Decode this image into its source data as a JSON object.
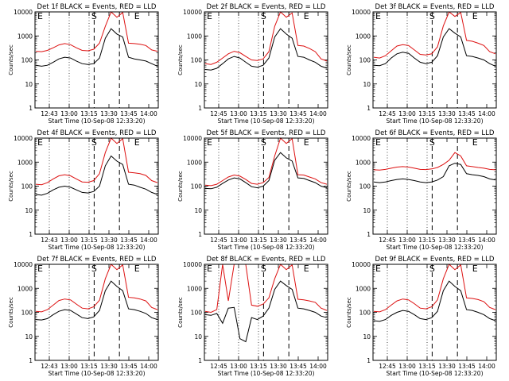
{
  "ylabel": "Counts/sec",
  "xlabel": "Start Time (10-Sep-08 12:33:20)",
  "y_ticks": [
    "1",
    "10",
    "100",
    "1000",
    "10000"
  ],
  "y_scale": "log",
  "ylim": [
    1,
    10000
  ],
  "flare_marks": [
    "S",
    "E"
  ],
  "series_colors": {
    "events": "#000000",
    "lld": "#dd1111"
  },
  "chart_data": [
    {
      "type": "line",
      "title": "Det 1f BLACK = Events, RED = LLD",
      "xticks": [
        "12:43",
        "13:00",
        "13:15",
        "13:30",
        "13:45",
        "14:00"
      ],
      "series": [
        {
          "name": "Events",
          "values": [
            60,
            55,
            60,
            80,
            110,
            130,
            120,
            90,
            70,
            65,
            70,
            120,
            800,
            2000,
            1200,
            900,
            130,
            110,
            100,
            90,
            70,
            55
          ]
        },
        {
          "name": "LLD",
          "values": [
            230,
            220,
            250,
            320,
            420,
            480,
            430,
            320,
            250,
            240,
            280,
            500,
            2500,
            10000,
            6000,
            9500,
            500,
            480,
            450,
            400,
            260,
            230
          ]
        }
      ]
    },
    {
      "type": "line",
      "title": "Det 2f BLACK = Events, RED = LLD",
      "xticks": [
        "12:45",
        "13:00",
        "13:15",
        "13:30",
        "13:45",
        "14:00"
      ],
      "series": [
        {
          "name": "Events",
          "values": [
            40,
            38,
            45,
            70,
            110,
            140,
            120,
            80,
            55,
            50,
            60,
            120,
            900,
            2000,
            1200,
            800,
            140,
            130,
            100,
            80,
            55,
            45
          ]
        },
        {
          "name": "LLD",
          "values": [
            70,
            65,
            80,
            120,
            180,
            230,
            200,
            140,
            100,
            95,
            110,
            220,
            2500,
            10000,
            6000,
            9000,
            400,
            380,
            300,
            220,
            110,
            90
          ]
        }
      ]
    },
    {
      "type": "line",
      "title": "Det 3f BLACK = Events, RED = LLD",
      "xticks": [
        "12:45",
        "13:00",
        "13:15",
        "13:30",
        "13:45",
        "14:00"
      ],
      "series": [
        {
          "name": "Events",
          "values": [
            60,
            58,
            70,
            120,
            180,
            210,
            190,
            120,
            80,
            70,
            80,
            150,
            900,
            2000,
            1300,
            900,
            150,
            140,
            120,
            100,
            70,
            55
          ]
        },
        {
          "name": "LLD",
          "values": [
            130,
            120,
            150,
            240,
            380,
            430,
            400,
            260,
            170,
            160,
            180,
            350,
            2600,
            10000,
            6500,
            9500,
            650,
            600,
            500,
            400,
            220,
            180
          ]
        }
      ]
    },
    {
      "type": "line",
      "title": "Det 4f BLACK = Events, RED = LLD",
      "xticks": [
        "12:43",
        "13:00",
        "13:15",
        "13:30",
        "13:45",
        "14:00"
      ],
      "series": [
        {
          "name": "Events",
          "values": [
            45,
            42,
            50,
            70,
            90,
            100,
            90,
            70,
            55,
            52,
            60,
            100,
            700,
            1800,
            1100,
            800,
            120,
            110,
            90,
            75,
            55,
            45
          ]
        },
        {
          "name": "LLD",
          "values": [
            120,
            115,
            140,
            200,
            270,
            300,
            270,
            200,
            150,
            145,
            170,
            330,
            2500,
            10000,
            6000,
            9500,
            380,
            360,
            330,
            280,
            170,
            140
          ]
        }
      ]
    },
    {
      "type": "line",
      "title": "Det 5f BLACK = Events, RED = LLD",
      "xticks": [
        "12:45",
        "13:00",
        "13:15",
        "13:30",
        "13:45",
        "14:00"
      ],
      "series": [
        {
          "name": "Events",
          "values": [
            80,
            78,
            90,
            130,
            180,
            220,
            200,
            140,
            95,
            85,
            100,
            170,
            1200,
            2500,
            1500,
            1100,
            220,
            210,
            170,
            140,
            100,
            85
          ]
        },
        {
          "name": "LLD",
          "values": [
            110,
            105,
            120,
            170,
            240,
            290,
            260,
            190,
            130,
            120,
            140,
            230,
            1800,
            10000,
            6000,
            9500,
            300,
            290,
            240,
            200,
            140,
            120
          ]
        }
      ]
    },
    {
      "type": "line",
      "title": "Det 6f BLACK = Events, RED = LLD",
      "xticks": [
        "12:45",
        "13:00",
        "13:15",
        "13:30",
        "13:45",
        "14:00"
      ],
      "series": [
        {
          "name": "Events",
          "values": [
            150,
            140,
            150,
            170,
            190,
            200,
            190,
            170,
            150,
            140,
            150,
            180,
            250,
            700,
            900,
            800,
            330,
            300,
            280,
            250,
            200,
            180
          ]
        },
        {
          "name": "LLD",
          "values": [
            480,
            470,
            500,
            560,
            620,
            650,
            620,
            560,
            500,
            490,
            520,
            600,
            800,
            1200,
            2500,
            1800,
            700,
            650,
            600,
            560,
            500,
            480
          ]
        }
      ]
    },
    {
      "type": "line",
      "title": "Det 7f BLACK = Events, RED = LLD",
      "xticks": [
        "12:43",
        "13:00",
        "13:15",
        "13:30",
        "13:45",
        "14:00"
      ],
      "series": [
        {
          "name": "Events",
          "values": [
            50,
            48,
            55,
            80,
            110,
            130,
            120,
            85,
            60,
            55,
            65,
            120,
            800,
            2000,
            1200,
            800,
            140,
            130,
            110,
            90,
            60,
            50
          ]
        },
        {
          "name": "LLD",
          "values": [
            110,
            105,
            130,
            200,
            310,
            360,
            330,
            220,
            150,
            140,
            170,
            320,
            2500,
            10000,
            6000,
            9500,
            420,
            400,
            360,
            300,
            160,
            130
          ]
        }
      ]
    },
    {
      "type": "line",
      "title": "Det 8f BLACK = Events, RED = LLD",
      "xticks": [
        "12:45",
        "13:00",
        "13:15",
        "13:30",
        "13:45",
        "14:00"
      ],
      "series": [
        {
          "name": "Events",
          "values": [
            80,
            75,
            90,
            35,
            150,
            160,
            8,
            6,
            60,
            50,
            70,
            150,
            900,
            2000,
            1300,
            900,
            150,
            140,
            120,
            100,
            70,
            60
          ]
        },
        {
          "name": "LLD",
          "values": [
            110,
            100,
            130,
            10000,
            300,
            10000,
            10000,
            10000,
            200,
            180,
            220,
            400,
            2500,
            10000,
            6000,
            9500,
            350,
            330,
            300,
            260,
            150,
            120
          ]
        }
      ]
    },
    {
      "type": "line",
      "title": "Det 9f BLACK = Events, RED = LLD",
      "xticks": [
        "12:45",
        "13:00",
        "13:15",
        "13:30",
        "13:45",
        "14:00"
      ],
      "series": [
        {
          "name": "Events",
          "values": [
            45,
            42,
            50,
            75,
            100,
            120,
            110,
            80,
            55,
            50,
            60,
            110,
            800,
            2000,
            1200,
            800,
            130,
            120,
            100,
            80,
            55,
            45
          ]
        },
        {
          "name": "LLD",
          "values": [
            110,
            105,
            130,
            200,
            300,
            360,
            330,
            230,
            150,
            140,
            170,
            330,
            2500,
            10000,
            6000,
            9500,
            400,
            380,
            340,
            280,
            160,
            130
          ]
        }
      ]
    }
  ]
}
